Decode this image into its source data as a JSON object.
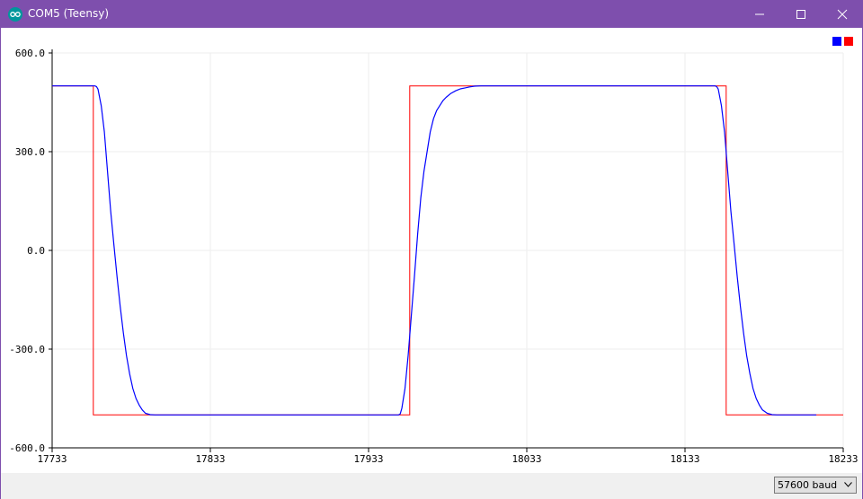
{
  "window": {
    "title": "COM5 (Teensy)",
    "accent": "#7e4fad",
    "icons": [
      "arduino-app-icon",
      "minimize-icon",
      "maximize-icon",
      "close-icon"
    ]
  },
  "chart_data": {
    "type": "line",
    "x": [
      17733,
      17760,
      17761,
      17762,
      17764,
      17766,
      17768,
      17770,
      17772,
      17774,
      17776,
      17778,
      17780,
      17782,
      17784,
      17786,
      17788,
      17790,
      17792,
      17795,
      17798,
      17801,
      17804,
      17807,
      17810,
      17814,
      17818,
      17822,
      17952,
      17953,
      17954,
      17956,
      17958,
      17960,
      17962,
      17964,
      17966,
      17968,
      17970,
      17972,
      17974,
      17976,
      17978,
      17980,
      17982,
      17985,
      17988,
      17991,
      17994,
      17997,
      18000,
      18004,
      18008,
      18012,
      18016,
      18020,
      18152,
      18153,
      18154,
      18156,
      18158,
      18160,
      18162,
      18164,
      18166,
      18168,
      18170,
      18172,
      18174,
      18176,
      18178,
      18180,
      18182,
      18185,
      18188,
      18191,
      18194,
      18197,
      18200,
      18204,
      18208,
      18212,
      18216
    ],
    "x_ticks": [
      "17733",
      "17833",
      "17933",
      "18033",
      "18133",
      "18233"
    ],
    "xlim": [
      17733,
      18233
    ],
    "y_ticks": [
      "600.0",
      "300.0",
      "0.0",
      "-300.0",
      "-600.0"
    ],
    "ylim": [
      -600,
      600
    ],
    "grid": true,
    "legend": "top-right",
    "series": [
      {
        "color": "#0000ff",
        "values": [
          500,
          500,
          498,
          490,
          440,
          360,
          240,
          120,
          20,
          -80,
          -170,
          -250,
          -320,
          -375,
          -420,
          -450,
          -470,
          -485,
          -495,
          -499,
          -500,
          -500,
          -500,
          -500,
          -500,
          -500,
          -500,
          -500,
          -500,
          -497,
          -480,
          -420,
          -320,
          -200,
          -80,
          50,
          160,
          240,
          300,
          360,
          400,
          425,
          440,
          455,
          465,
          477,
          485,
          491,
          494,
          497,
          499,
          500,
          500,
          500,
          500,
          500,
          500,
          498,
          490,
          440,
          360,
          240,
          120,
          20,
          -80,
          -170,
          -250,
          -320,
          -375,
          -420,
          -450,
          -470,
          -485,
          -495,
          -499,
          -500,
          -500,
          -500,
          -500,
          -500,
          -500,
          -500,
          -500
        ]
      },
      {
        "color": "#ff0000",
        "segments": [
          [
            17733,
            500
          ],
          [
            17759,
            500
          ],
          [
            17759,
            -500
          ],
          [
            17959,
            -500
          ],
          [
            17959,
            500
          ],
          [
            18159,
            500
          ],
          [
            18159,
            -500
          ],
          [
            18233,
            -500
          ]
        ]
      }
    ]
  },
  "statusbar": {
    "baud_selected": "57600 baud"
  }
}
